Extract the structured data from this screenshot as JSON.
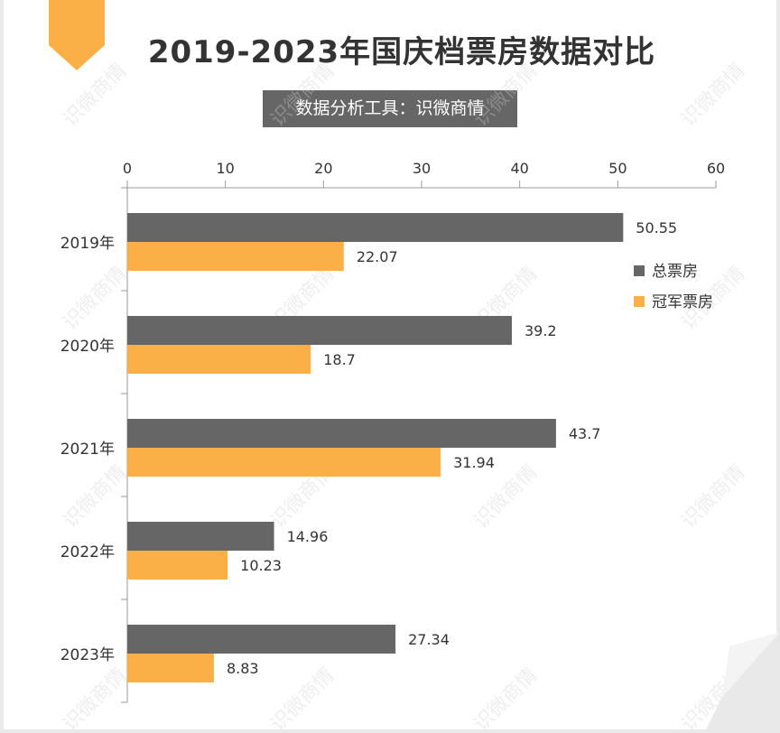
{
  "header": {
    "title": "2019-2023年国庆档票房数据对比",
    "subtitle": "数据分析工具：识微商情",
    "accent_color": "#fbb047",
    "subtitle_bg": "#666666"
  },
  "watermark": {
    "text": "识微商情"
  },
  "chart_data": {
    "type": "bar",
    "orientation": "horizontal",
    "title": "2019-2023年国庆档票房数据对比",
    "categories": [
      "2019年",
      "2020年",
      "2021年",
      "2022年",
      "2023年"
    ],
    "series": [
      {
        "name": "总票房",
        "color": "#666666",
        "values": [
          50.55,
          39.2,
          43.7,
          14.96,
          27.34
        ],
        "labels": [
          "50.55",
          "39.2",
          "43.7",
          "14.96",
          "27.34"
        ]
      },
      {
        "name": "冠军票房",
        "color": "#fbb047",
        "values": [
          22.07,
          18.7,
          31.94,
          10.23,
          8.83
        ],
        "labels": [
          "22.07",
          "18.7",
          "31.94",
          "10.23",
          "8.83"
        ]
      }
    ],
    "x_ticks": [
      "0",
      "10",
      "20",
      "30",
      "40",
      "50",
      "60"
    ],
    "xlim": [
      0,
      60
    ],
    "x_axis_position": "top",
    "grid": false,
    "legend_position": "right"
  }
}
